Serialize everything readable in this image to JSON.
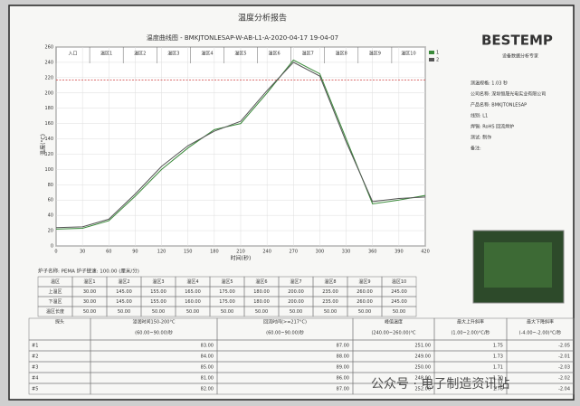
{
  "header": {
    "title": "温度分析报告"
  },
  "chart_data": {
    "type": "line",
    "title": "温度曲线图 - BMKJTONLESAP-W-AB-L1-A-2020-04-17 19-04-07",
    "y_label": "温度(°C)",
    "x_label": "时间(秒)",
    "zones": [
      "入口",
      "温区1",
      "温区2",
      "温区3",
      "温区4",
      "温区5",
      "温区6",
      "温区7",
      "温区8",
      "温区9",
      "温区10"
    ],
    "x": [
      0,
      30,
      60,
      90,
      120,
      150,
      180,
      210,
      240,
      270,
      300,
      330,
      360,
      390,
      420
    ],
    "series": [
      {
        "name": "1",
        "color": "#3a8a3a",
        "values": [
          22,
          23,
          33,
          65,
          100,
          128,
          152,
          160,
          200,
          243,
          225,
          140,
          55,
          60,
          66
        ]
      },
      {
        "name": "2",
        "color": "#555555",
        "values": [
          24,
          25,
          35,
          68,
          104,
          131,
          150,
          163,
          203,
          240,
          222,
          136,
          58,
          62,
          64
        ]
      }
    ],
    "threshold": 217,
    "threshold_color": "#d04040",
    "xlim": [
      0,
      420
    ],
    "xticks": [
      0,
      30,
      60,
      90,
      120,
      150,
      180,
      210,
      240,
      270,
      300,
      330,
      360,
      390,
      420
    ],
    "ylim": [
      0,
      260
    ],
    "yticks": [
      0,
      20,
      40,
      60,
      80,
      100,
      120,
      140,
      160,
      180,
      200,
      220,
      240,
      260
    ],
    "grid": true
  },
  "panel": {
    "logo": "BESTEMP",
    "subtitle": "设备数据分析专家",
    "fields": [
      "测温规格: 1.03 秒",
      "公司名称: 深圳恒晟光电实业有限公司",
      "产品名称: BMKJTONLESAP",
      "线别: L1",
      "焊锡: RoHS  回流焊炉",
      "测试: 制作",
      "备注:"
    ]
  },
  "zone_table": {
    "caption": "炉子名称: PEMA   炉子链速: 100.00 (厘米/分)",
    "header": [
      "温区",
      "温区1",
      "温区2",
      "温区3",
      "温区4",
      "温区5",
      "温区6",
      "温区7",
      "温区8",
      "温区9",
      "温区10"
    ],
    "rows": [
      [
        "上温区",
        "30.00",
        "145.00",
        "155.00",
        "165.00",
        "175.00",
        "180.00",
        "200.00",
        "235.00",
        "260.00",
        "245.00"
      ],
      [
        "下温区",
        "30.00",
        "145.00",
        "155.00",
        "160.00",
        "175.00",
        "180.00",
        "200.00",
        "235.00",
        "260.00",
        "245.00"
      ],
      [
        "温区长度",
        "50.00",
        "50.00",
        "50.00",
        "50.00",
        "50.00",
        "50.00",
        "50.00",
        "50.00",
        "50.00",
        "50.00"
      ]
    ]
  },
  "result_table": {
    "header": [
      "探头",
      "浸润时间150-200°C",
      "回流时间(>=217°C)",
      "峰值温度",
      "最大上升斜率",
      "最大下降斜率"
    ],
    "limits": [
      "",
      "(60.00~90.00)秒",
      "(60.00~90.00)秒",
      "(240.00~260.00)°C",
      "(1.00~2.00)°C/秒",
      "(-4.00~-2.00)°C/秒"
    ],
    "rows": [
      [
        "#1",
        "83.00",
        "87.00",
        "251.00",
        "1.75",
        "-2.05"
      ],
      [
        "#2",
        "84.00",
        "88.00",
        "249.00",
        "1.73",
        "-2.01"
      ],
      [
        "#3",
        "85.00",
        "89.00",
        "250.00",
        "1.71",
        "-2.03"
      ],
      [
        "#4",
        "81.00",
        "86.00",
        "248.00",
        "1.70",
        "-2.02"
      ],
      [
        "#5",
        "82.00",
        "87.00",
        "252.00",
        "1.76",
        "-2.04"
      ]
    ]
  },
  "watermark": "公众号 · 电子制造资讯站"
}
